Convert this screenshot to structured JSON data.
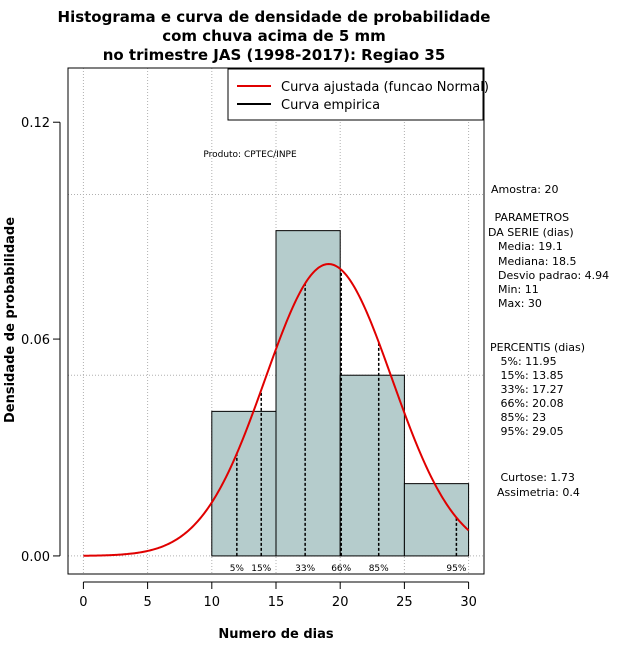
{
  "chart_data": {
    "type": "bar",
    "title_lines": [
      "Histograma e curva de densidade de probabilidade",
      "com chuva acima de 5 mm",
      "no trimestre JAS (1998-2017): Regiao 35"
    ],
    "xlabel": "Numero de dias",
    "ylabel": "Densidade de probabilidade",
    "xlim": [
      -1.2,
      31.2
    ],
    "ylim": [
      -0.005,
      0.135
    ],
    "x_ticks": [
      "0",
      "5",
      "10",
      "15",
      "20",
      "25",
      "30"
    ],
    "y_ticks": [
      "0.00",
      "0.06",
      "0.12"
    ],
    "y_tick_values": [
      0,
      0.06,
      0.12
    ],
    "grid_x": [
      0,
      5,
      10,
      15,
      20,
      25,
      30
    ],
    "grid_y": [
      0,
      0.05,
      0.1
    ],
    "bars": [
      {
        "x0": 10,
        "x1": 15,
        "density": 0.04
      },
      {
        "x0": 15,
        "x1": 20,
        "density": 0.09
      },
      {
        "x0": 20,
        "x1": 25,
        "density": 0.05
      },
      {
        "x0": 25,
        "x1": 30,
        "density": 0.02
      }
    ],
    "normal_curve": {
      "mean": 19.1,
      "sd": 4.94,
      "x_from": 0,
      "x_to": 30,
      "color": "#e00000"
    },
    "bar_color": "#b5cccc",
    "percentiles": [
      {
        "label": "5%",
        "value": 11.95
      },
      {
        "label": "15%",
        "value": 13.85
      },
      {
        "label": "33%",
        "value": 17.27
      },
      {
        "label": "66%",
        "value": 20.08
      },
      {
        "label": "85%",
        "value": 23
      },
      {
        "label": "95%",
        "value": 29.05
      }
    ],
    "legend": {
      "position": "top-right",
      "entries": [
        {
          "label": "Curva ajustada (funcao Normal)",
          "color": "#e00000"
        },
        {
          "label": "Curva empirica",
          "color": "#000000"
        }
      ]
    },
    "credit": "Produto: CPTEC/INPE"
  },
  "side_panel": {
    "amostra": "Amostra: 20",
    "params_header": [
      " PARAMETROS",
      "DA SERIE (dias)"
    ],
    "params": [
      "  Media: 19.1",
      "  Mediana: 18.5",
      "  Desvio padrao: 4.94",
      "  Min: 11",
      "  Max: 30"
    ],
    "percentis_header": "PERCENTIS (dias)",
    "percentis": [
      "   5%: 11.95",
      "   15%: 13.85",
      "   33%: 17.27",
      "   66%: 20.08",
      "   85%: 23",
      "   95%: 29.05"
    ],
    "shape": [
      "   Curtose: 1.73",
      "  Assimetria: 0.4"
    ]
  }
}
